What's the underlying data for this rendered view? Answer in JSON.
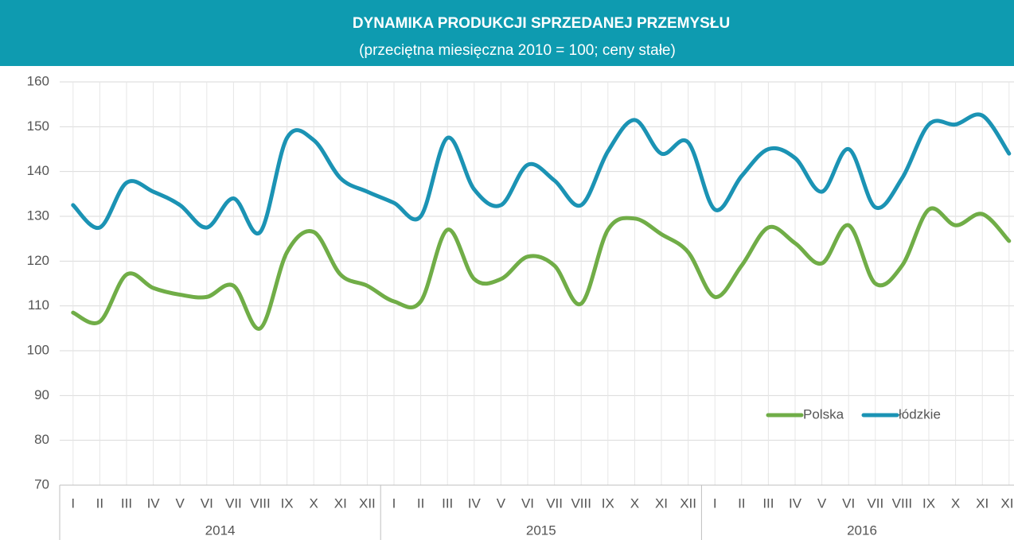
{
  "chart_data": {
    "type": "line",
    "title": "DYNAMIKA  PRODUKCJI  SPRZEDANEJ  PRZEMYSŁU",
    "subtitle": "(przeciętna miesięczna 2010 = 100; ceny stałe)",
    "categories": [
      "I",
      "II",
      "III",
      "IV",
      "V",
      "VI",
      "VII",
      "VIII",
      "IX",
      "X",
      "XI",
      "XII",
      "I",
      "II",
      "III",
      "IV",
      "V",
      "VI",
      "VII",
      "VIII",
      "IX",
      "X",
      "XI",
      "XII",
      "I",
      "II",
      "III",
      "IV",
      "V",
      "VI",
      "VII",
      "VIII",
      "IX",
      "X",
      "XI",
      "XII"
    ],
    "x_groups": [
      "2014",
      "2015",
      "2016"
    ],
    "series": [
      {
        "name": "Polska",
        "color": "#70ad47",
        "values": [
          108.5,
          106.5,
          117,
          114,
          112.5,
          112,
          114.5,
          105,
          122,
          126.5,
          117,
          114.5,
          111,
          111,
          127,
          116,
          116,
          121,
          119,
          110.5,
          127,
          129.5,
          126,
          122,
          112,
          119,
          127.5,
          124,
          119.5,
          128,
          115,
          119,
          131.5,
          128,
          130.5,
          124.5
        ]
      },
      {
        "name": "łódzkie",
        "color": "#1b93b4",
        "values": [
          132.5,
          127.5,
          137.5,
          135.5,
          132.5,
          127.5,
          134,
          126.5,
          147.5,
          147,
          138.5,
          135.5,
          133,
          130,
          147.5,
          136,
          132.5,
          141.5,
          138,
          132.5,
          144.5,
          151.5,
          144,
          146.5,
          131.5,
          139,
          145,
          143,
          135.5,
          145,
          132,
          138.5,
          150.5,
          150.5,
          152.5,
          144
        ]
      }
    ],
    "ylim": [
      70,
      160
    ],
    "yticks": [
      70,
      80,
      90,
      100,
      110,
      120,
      130,
      140,
      150,
      160
    ],
    "grid": true,
    "smooth": true,
    "legend": "lower right"
  }
}
